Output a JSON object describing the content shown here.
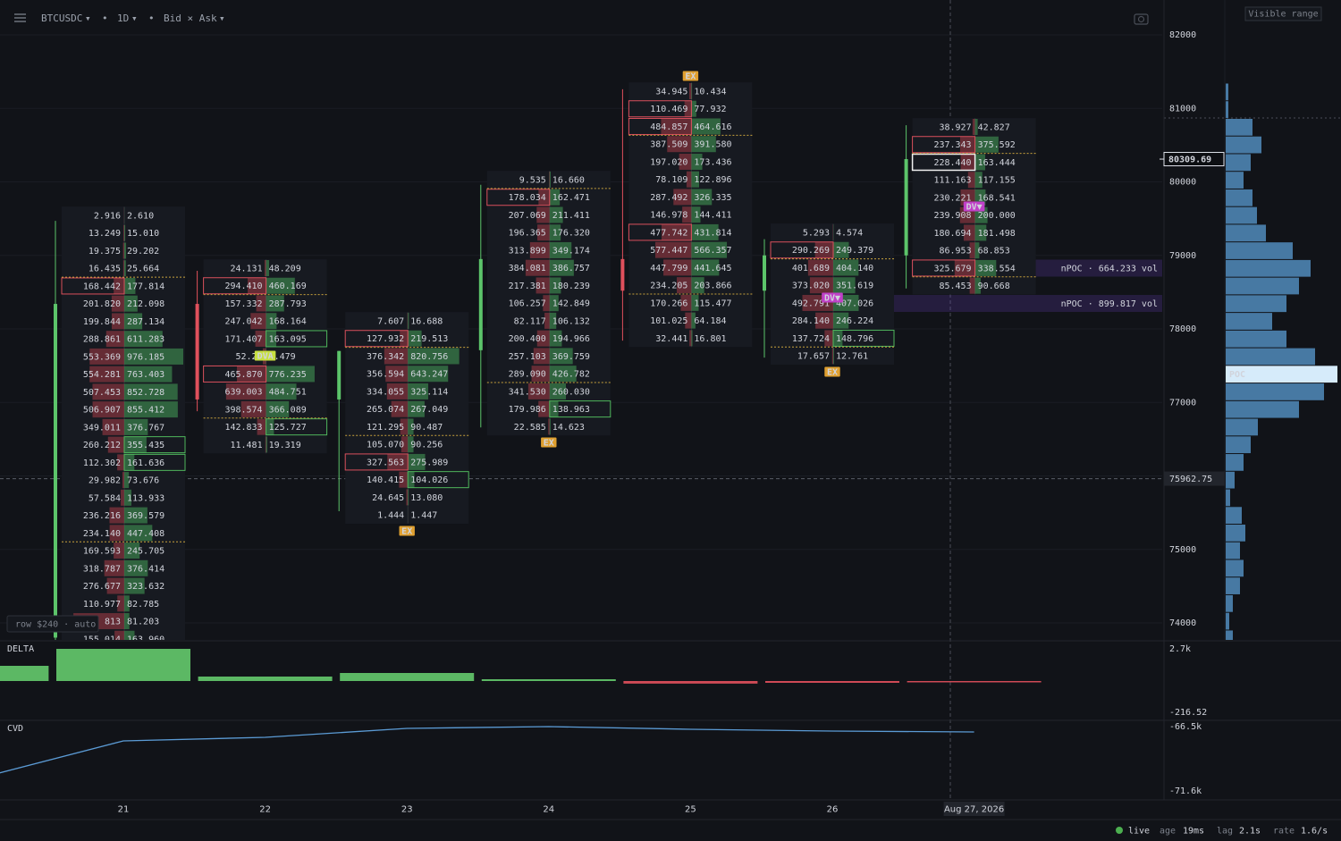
{
  "toolbar": {
    "symbol": "BTCUSDC",
    "interval": "1D",
    "mode": "Bid × Ask",
    "carets": [
      "▾",
      "▾",
      "▾"
    ],
    "separators": [
      "•",
      "•"
    ],
    "visible_range": "Visible range"
  },
  "price_axis": {
    "ticks": [
      82000,
      81000,
      80000,
      79000,
      78000,
      77000,
      76000,
      75000,
      74000
    ],
    "last_price": 80309.69,
    "crosshair_price": 75962.75
  },
  "x_axis": {
    "labels": [
      "21",
      "22",
      "23",
      "24",
      "25",
      "26",
      "Aug 27, 2026"
    ]
  },
  "clusters": [
    {
      "candle": {
        "open": 73800,
        "high": 79470,
        "low": 73700,
        "close": 78340
      },
      "tags": [],
      "rows": [
        [
          "2.916",
          "2.610"
        ],
        [
          "13.249",
          "15.010"
        ],
        [
          "19.375",
          "29.202"
        ],
        [
          "16.435",
          "25.664"
        ],
        [
          "168.442",
          "177.814"
        ],
        [
          "201.820",
          "212.098"
        ],
        [
          "199.844",
          "287.134"
        ],
        [
          "288.861",
          "611.283"
        ],
        [
          "553.369",
          "976.185"
        ],
        [
          "554.281",
          "763.403"
        ],
        [
          "507.453",
          "852.728"
        ],
        [
          "506.907",
          "855.412"
        ],
        [
          "349.011",
          "376.767"
        ],
        [
          "260.212",
          "355.435"
        ],
        [
          "112.302",
          "161.636"
        ],
        [
          "29.982",
          "73.676"
        ],
        [
          "57.584",
          "113.933"
        ],
        [
          "236.216",
          "369.579"
        ],
        [
          "234.140",
          "447.408"
        ],
        [
          "169.593",
          "245.705"
        ],
        [
          "318.787",
          "376.414"
        ],
        [
          "276.677",
          "323.632"
        ],
        [
          "110.977",
          "82.785"
        ],
        [
          "813",
          "81.203"
        ],
        [
          "155.014",
          "163.960"
        ]
      ]
    },
    {
      "candle": {
        "open": 78340,
        "high": 78790,
        "low": 76880,
        "close": 77040
      },
      "tags": [
        "DVA"
      ],
      "rows": [
        [
          "24.131",
          "48.209"
        ],
        [
          "294.410",
          "460.169"
        ],
        [
          "157.332",
          "287.793"
        ],
        [
          "247.042",
          "168.164"
        ],
        [
          "171.407",
          "163.095"
        ],
        [
          "52.22",
          "2.479"
        ],
        [
          "465.870",
          "776.235"
        ],
        [
          "639.003",
          "484.751"
        ],
        [
          "398.574",
          "366.089"
        ],
        [
          "142.833",
          "125.727"
        ],
        [
          "11.481",
          "19.319"
        ]
      ]
    },
    {
      "candle": {
        "open": 77040,
        "high": 77700,
        "low": 75520,
        "close": 77700
      },
      "tags": [
        "EX"
      ],
      "rows": [
        [
          "7.607",
          "16.688"
        ],
        [
          "127.932",
          "219.513"
        ],
        [
          "376.342",
          "820.756"
        ],
        [
          "356.594",
          "643.247"
        ],
        [
          "334.055",
          "325.114"
        ],
        [
          "265.074",
          "267.049"
        ],
        [
          "121.295",
          "90.487"
        ],
        [
          "105.070",
          "90.256"
        ],
        [
          "327.563",
          "275.989"
        ],
        [
          "140.415",
          "104.026"
        ],
        [
          "24.645",
          "13.080"
        ],
        [
          "1.444",
          "1.447"
        ]
      ]
    },
    {
      "candle": {
        "open": 77710,
        "high": 79960,
        "low": 76660,
        "close": 78950
      },
      "tags": [
        "EX"
      ],
      "rows": [
        [
          "9.535",
          "16.660"
        ],
        [
          "178.034",
          "162.471"
        ],
        [
          "207.069",
          "211.411"
        ],
        [
          "196.365",
          "176.320"
        ],
        [
          "313.899",
          "349.174"
        ],
        [
          "384.081",
          "386.757"
        ],
        [
          "217.381",
          "180.239"
        ],
        [
          "106.257",
          "142.849"
        ],
        [
          "82.117",
          "106.132"
        ],
        [
          "200.400",
          "194.966"
        ],
        [
          "257.103",
          "369.759"
        ],
        [
          "289.090",
          "426.782"
        ],
        [
          "341.530",
          "260.030"
        ],
        [
          "179.986",
          "138.963"
        ],
        [
          "22.585",
          "14.623"
        ]
      ]
    },
    {
      "candle": {
        "open": 78950,
        "high": 81260,
        "low": 77840,
        "close": 78520
      },
      "tags": [
        "EX"
      ],
      "rows": [
        [
          "34.945",
          "10.434"
        ],
        [
          "110.469",
          "77.932"
        ],
        [
          "484.857",
          "464.616"
        ],
        [
          "387.509",
          "391.580"
        ],
        [
          "197.020",
          "173.436"
        ],
        [
          "78.109",
          "122.896"
        ],
        [
          "287.492",
          "326.335"
        ],
        [
          "146.978",
          "144.411"
        ],
        [
          "477.742",
          "431.814"
        ],
        [
          "577.447",
          "566.357"
        ],
        [
          "447.799",
          "441.645"
        ],
        [
          "234.205",
          "203.866"
        ],
        [
          "170.266",
          "115.477"
        ],
        [
          "101.025",
          "64.184"
        ],
        [
          "32.441",
          "16.801"
        ]
      ]
    },
    {
      "candle": {
        "open": 78520,
        "high": 79220,
        "low": 77610,
        "close": 79000
      },
      "tags": [
        "DV▼",
        "EX"
      ],
      "rows": [
        [
          "5.293",
          "4.574"
        ],
        [
          "290.269",
          "249.379"
        ],
        [
          "401.689",
          "404.140"
        ],
        [
          "373.020",
          "351.619"
        ],
        [
          "492.791",
          "407.026"
        ],
        [
          "284.140",
          "246.224"
        ],
        [
          "137.724",
          "148.796"
        ],
        [
          "17.657",
          "12.761"
        ]
      ]
    },
    {
      "candle": {
        "open": 79000,
        "high": 80770,
        "low": 78550,
        "close": 80310
      },
      "tags": [
        "DV▼"
      ],
      "rows": [
        [
          "38.927",
          "42.827"
        ],
        [
          "237.343",
          "375.592"
        ],
        [
          "228.440",
          "163.444"
        ],
        [
          "111.163",
          "117.155"
        ],
        [
          "230.221",
          "168.541"
        ],
        [
          "239.908",
          "200.000"
        ],
        [
          "180.694",
          "181.498"
        ],
        [
          "86.953",
          "68.853"
        ],
        [
          "325.679",
          "338.554"
        ],
        [
          "85.453",
          "90.668"
        ]
      ]
    }
  ],
  "npoc": [
    "nPOC · 664.233 vol",
    "nPOC · 899.817 vol"
  ],
  "volume_profile": {
    "poc_label": "POC",
    "values": [
      3,
      3,
      30,
      40,
      28,
      20,
      30,
      35,
      45,
      75,
      95,
      82,
      68,
      52,
      68,
      100,
      125,
      110,
      82,
      36,
      28,
      20,
      10,
      5,
      18,
      22,
      16,
      20,
      16,
      8,
      4,
      8
    ]
  },
  "delta": {
    "label": "DELTA",
    "max_label": "2.7k",
    "min_label": "-216.52",
    "values": [
      1275,
      2700,
      375,
      675,
      150,
      -216.52,
      -150,
      -20
    ]
  },
  "cvd": {
    "label": "CVD",
    "ticks": [
      {
        "value": -66500,
        "label": "-66.5k"
      },
      {
        "value": -71600,
        "label": "-71.6k"
      }
    ],
    "values": [
      -70540,
      -67633,
      -67350,
      -66642,
      -66500,
      -66712,
      -66854,
      -66925
    ]
  },
  "row_setting": "row $240 · auto",
  "status": {
    "live": "live",
    "age_label": "age",
    "age": "19ms",
    "lag_label": "lag",
    "lag": "2.1s",
    "rate_label": "rate",
    "rate": "1.6/s"
  }
}
